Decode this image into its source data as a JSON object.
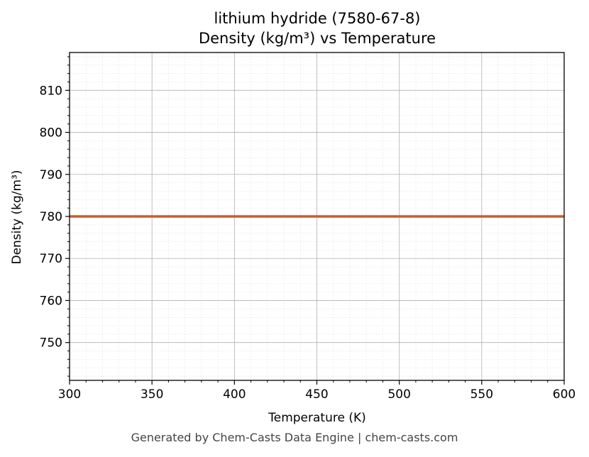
{
  "chart_data": {
    "type": "line",
    "title_line1": "lithium hydride (7580-67-8)",
    "title_line2": "Density (kg/m³) vs Temperature",
    "xlabel": "Temperature (K)",
    "ylabel": "Density (kg/m³)",
    "xlim": [
      300,
      600
    ],
    "ylim": [
      741,
      819
    ],
    "x_ticks": [
      300,
      350,
      400,
      450,
      500,
      550,
      600
    ],
    "y_ticks": [
      750,
      760,
      770,
      780,
      790,
      800,
      810
    ],
    "grid": true,
    "series": [
      {
        "x": [
          300,
          350,
          400,
          450,
          500,
          550,
          600
        ],
        "y": [
          780,
          780,
          780,
          780,
          780,
          780,
          780
        ],
        "color": "#cc5a2e"
      }
    ]
  },
  "footer": "Generated by Chem-Casts Data Engine | chem-casts.com"
}
